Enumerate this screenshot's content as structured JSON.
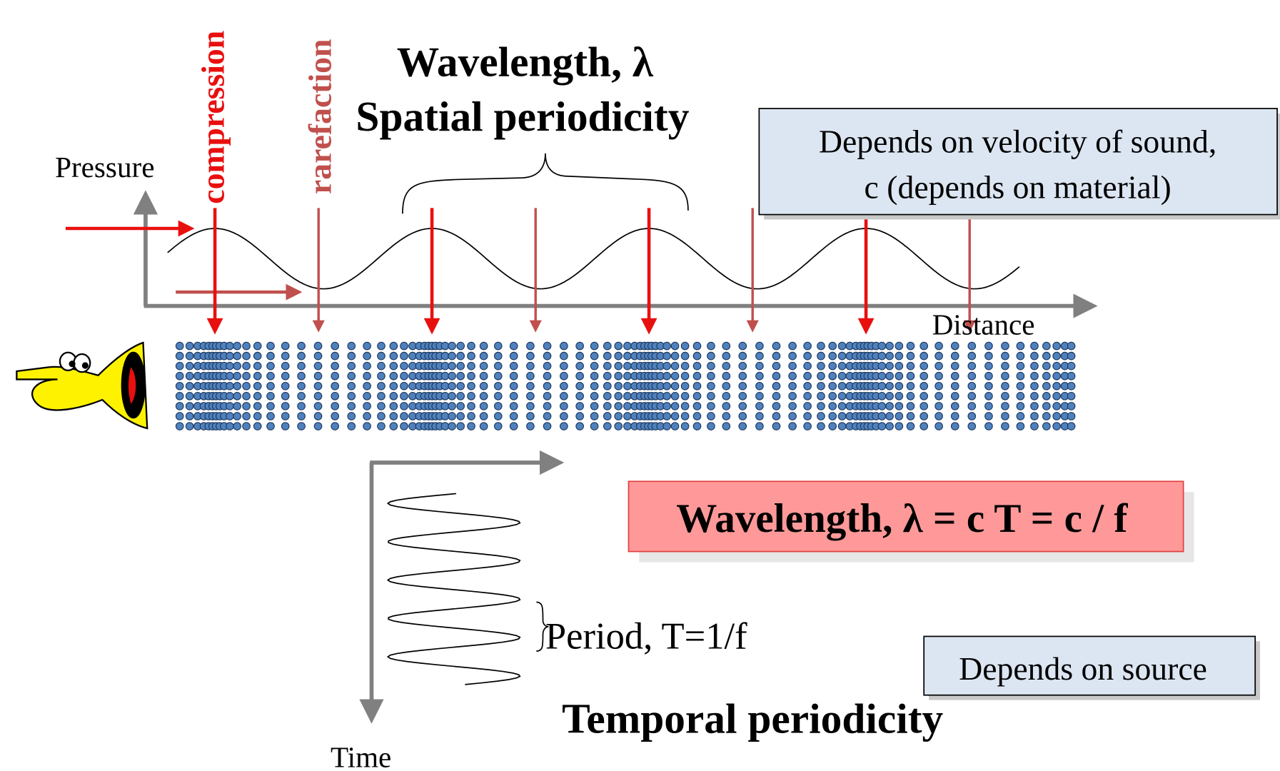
{
  "labels": {
    "pressure": "Pressure",
    "distance": "Distance",
    "compression": "compression",
    "rarefaction": "rarefaction",
    "time": "Time"
  },
  "spatial": {
    "title": "Wavelength, λ",
    "subtitle": "Spatial periodicity"
  },
  "velocity_box": {
    "line1": "Depends on velocity of sound,",
    "line2": "c (depends on material)"
  },
  "formula": "Wavelength, λ = c T = c / f",
  "period": "Period, T=1/f",
  "temporal": "Temporal periodicity",
  "source_box": "Depends on source"
}
